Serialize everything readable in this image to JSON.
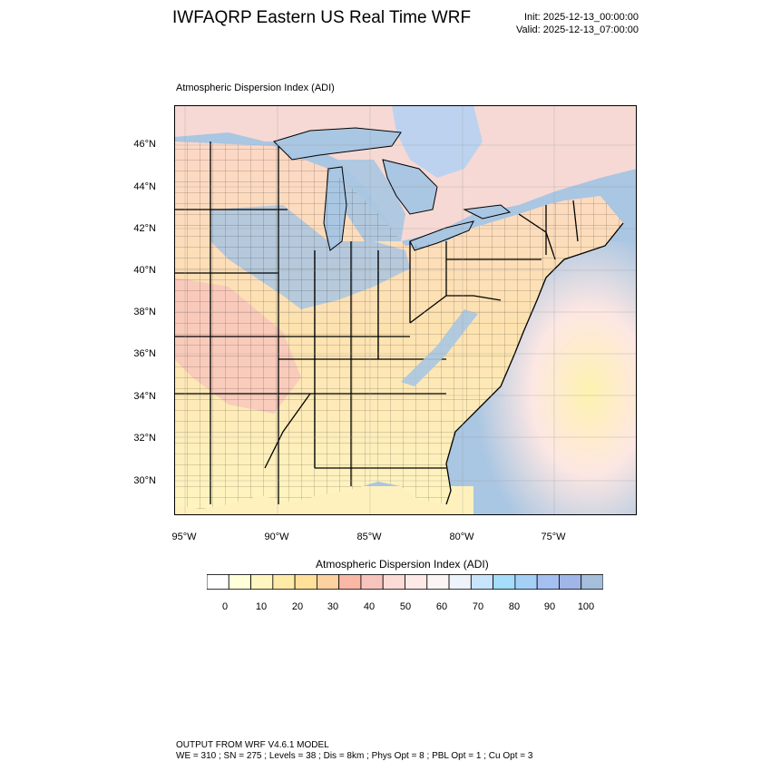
{
  "title": "IWFAQRP Eastern US Real Time WRF",
  "init": "Init: 2025-12-13_00:00:00",
  "valid": "Valid: 2025-12-13_07:00:00",
  "field_label": "Atmospheric Dispersion Index   (ADI)",
  "lat_labels": [
    "46°N",
    "44°N",
    "42°N",
    "40°N",
    "38°N",
    "36°N",
    "34°N",
    "32°N",
    "30°N"
  ],
  "lon_labels": [
    "95°W",
    "90°W",
    "85°W",
    "80°W",
    "75°W"
  ],
  "colorbar": {
    "title": "Atmospheric Dispersion Index  (ADI)",
    "labels": [
      "0",
      "10",
      "20",
      "30",
      "40",
      "50",
      "60",
      "70",
      "80",
      "90",
      "100"
    ],
    "colors": [
      "#ffffff",
      "#ffffd9",
      "#fff5c0",
      "#ffeaa8",
      "#ffe09a",
      "#fdd0a0",
      "#f9b7a6",
      "#f7c4bd",
      "#fadbd6",
      "#fde9e6",
      "#fbf4f4",
      "#eef2fb",
      "#c8e4fa",
      "#a4dcfa",
      "#a4d0f7",
      "#a5bff0",
      "#9fb6e6",
      "#a4bedb"
    ]
  },
  "colors": {
    "water": "#a9c6e2",
    "land_low": "#fff5c0",
    "land_mid": "#f7c4bd",
    "land_high": "#a9c6e2"
  },
  "footer": {
    "line1": "OUTPUT FROM WRF V4.6.1 MODEL",
    "line2": "WE = 310 ; SN = 275 ; Levels = 38 ; Dis = 8km ; Phys Opt = 8 ; PBL Opt = 1 ; Cu Opt = 3"
  }
}
